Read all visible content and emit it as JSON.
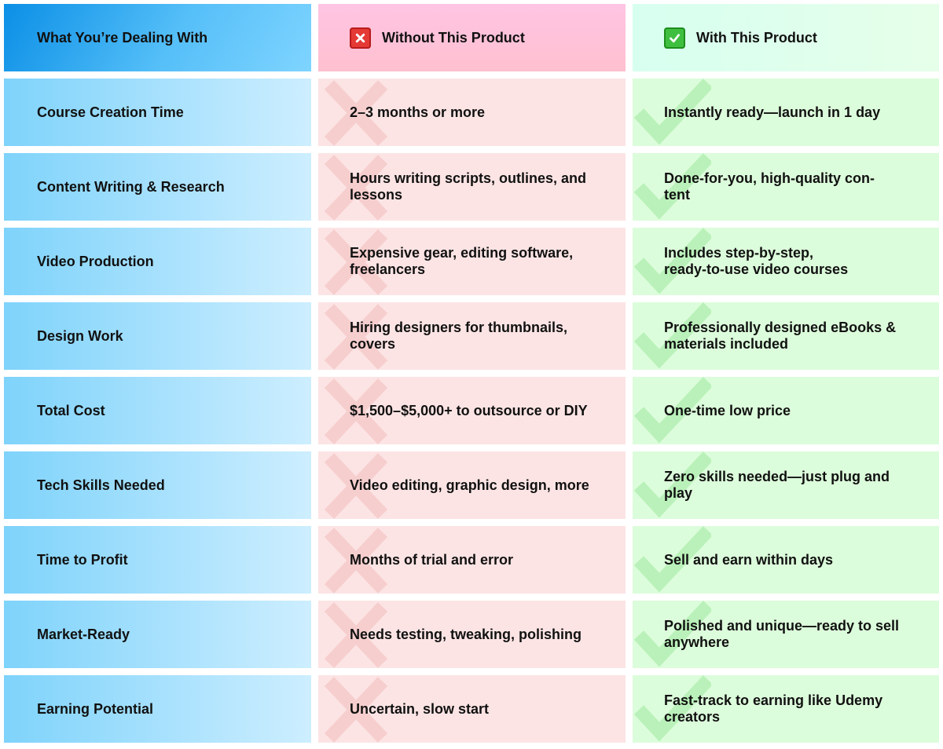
{
  "header": {
    "col1": "What You’re Dealing With",
    "col2": "Without This Product",
    "col3": "With This Product",
    "col2_icon": "cross-mark-icon",
    "col3_icon": "check-mark-icon"
  },
  "colors": {
    "without_accent": "#e53935",
    "with_accent": "#3fbf3f",
    "label_blue": "#0b8fe6"
  },
  "rows": [
    {
      "label": "Course Creation Time",
      "without": "2–3 months or more",
      "with": "Instantly ready—launch in 1 day"
    },
    {
      "label": "Content Writing & Research",
      "without": "Hours writing scripts, outlines, and lessons",
      "with": "Done-for-you, high-quality con-\ntent"
    },
    {
      "label": "Video Production",
      "without": "Expensive gear, editing software, freelancers",
      "with": "Includes step-by-step,\nready-to-use video courses"
    },
    {
      "label": "Design Work",
      "without": "Hiring designers for thumbnails, covers",
      "with": "Professionally designed eBooks & materials included"
    },
    {
      "label": "Total Cost",
      "without": "$1,500–$5,000+ to outsource or DIY",
      "with": "One-time low price"
    },
    {
      "label": "Tech Skills Needed",
      "without": "Video editing, graphic design, more",
      "with": "Zero skills needed—just plug and play"
    },
    {
      "label": "Time to Profit",
      "without": "Months of trial and error",
      "with": "Sell and earn within days"
    },
    {
      "label": "Market-Ready",
      "without": "Needs testing, tweaking, polishing",
      "with": "Polished and unique—ready to sell anywhere"
    },
    {
      "label": "Earning Potential",
      "without": "Uncertain, slow start",
      "with": "Fast-track to earning like Udemy creators"
    }
  ]
}
